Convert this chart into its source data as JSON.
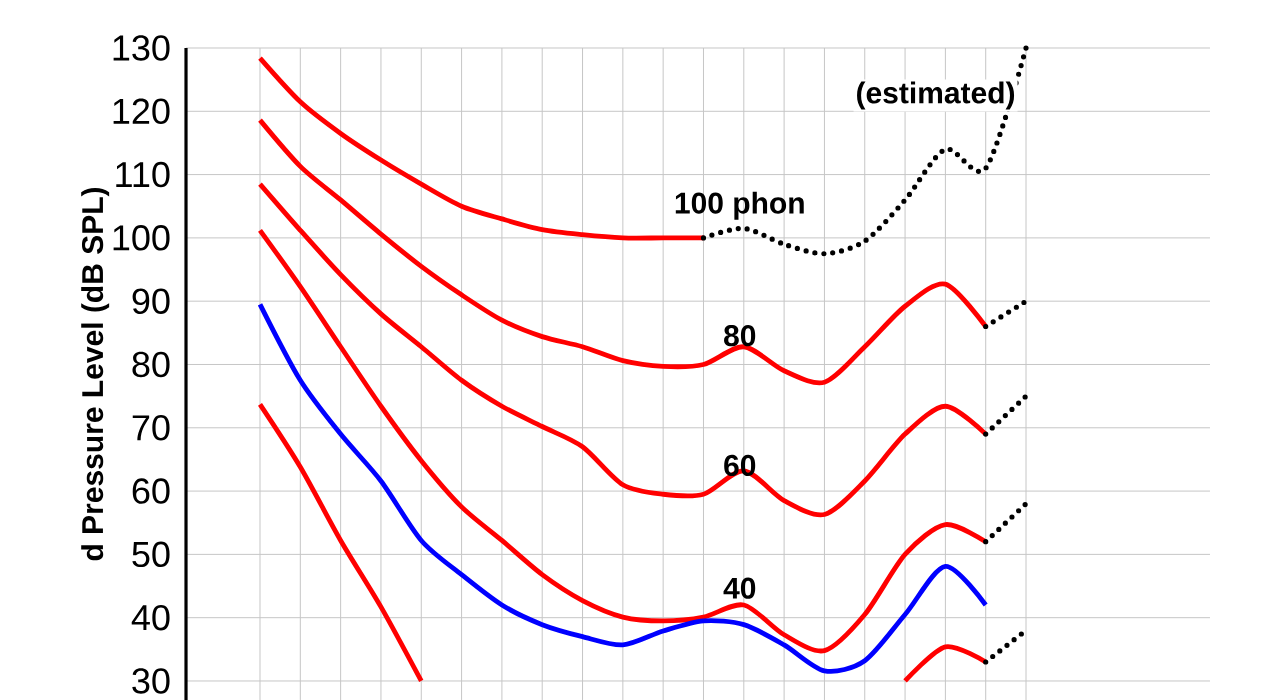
{
  "chart_data": {
    "type": "line",
    "ylabel": "d Pressure Level (dB SPL)",
    "categories": [
      null,
      null,
      null,
      null,
      null,
      null,
      null,
      null,
      null,
      null,
      null,
      null,
      null,
      null,
      null,
      null,
      null,
      null,
      null,
      null
    ],
    "ylim": [
      27,
      130
    ],
    "yticks": [
      30,
      40,
      50,
      60,
      70,
      80,
      90,
      100,
      110,
      120,
      130
    ],
    "grid": true,
    "tick_labels": "y",
    "marker": "none",
    "annotations": [
      "(estimated)"
    ],
    "series": [
      {
        "name": "100 phon",
        "color": "#ff0000",
        "line_style": "solid",
        "values": [
          128.4,
          121.5,
          116.5,
          112.3,
          108.5,
          105,
          103,
          101.3,
          100.5,
          100,
          100,
          100,
          null,
          null,
          null,
          null,
          null,
          null,
          null,
          null
        ]
      },
      {
        "color": "#000000",
        "line_style": "dotted",
        "values": [
          null,
          null,
          null,
          null,
          null,
          null,
          null,
          null,
          null,
          null,
          null,
          100,
          101.5,
          99,
          97.5,
          99.5,
          106,
          114,
          111,
          130
        ]
      },
      {
        "name": "80",
        "color": "#ff0000",
        "line_style": "solid",
        "values": [
          118.6,
          111.3,
          106,
          100.6,
          95.5,
          91,
          87,
          84.4,
          82.8,
          80.6,
          79.7,
          80,
          82.8,
          79,
          77.2,
          82.8,
          89.2,
          92.7,
          86,
          null
        ]
      },
      {
        "color": "#000000",
        "line_style": "dotted",
        "values": [
          null,
          null,
          null,
          null,
          null,
          null,
          null,
          null,
          null,
          null,
          null,
          null,
          null,
          null,
          null,
          null,
          null,
          null,
          86,
          90
        ]
      },
      {
        "name": "60",
        "color": "#ff0000",
        "line_style": "solid",
        "values": [
          108.5,
          101.2,
          94.2,
          88,
          82.8,
          77.5,
          73.4,
          70.2,
          67,
          61,
          59.5,
          59.5,
          63.2,
          58.5,
          56.3,
          61.6,
          69,
          73.4,
          69,
          null
        ]
      },
      {
        "color": "#000000",
        "line_style": "dotted",
        "values": [
          null,
          null,
          null,
          null,
          null,
          null,
          null,
          null,
          null,
          null,
          null,
          null,
          null,
          null,
          null,
          null,
          null,
          null,
          69,
          75
        ]
      },
      {
        "name": "40",
        "color": "#ff0000",
        "line_style": "solid",
        "values": [
          101.2,
          92.3,
          82.8,
          73.4,
          64.8,
          57.5,
          52.2,
          46.8,
          42.7,
          40.1,
          39.5,
          40.1,
          42,
          37.3,
          34.8,
          40.5,
          50,
          54.7,
          52,
          null
        ]
      },
      {
        "color": "#000000",
        "line_style": "dotted",
        "values": [
          null,
          null,
          null,
          null,
          null,
          null,
          null,
          null,
          null,
          null,
          null,
          null,
          null,
          null,
          null,
          null,
          null,
          null,
          52,
          58
        ]
      },
      {
        "color": "#ff0000",
        "line_style": "solid",
        "values": [
          73.7,
          63.8,
          52.2,
          41.7,
          30,
          null,
          null,
          null,
          null,
          null,
          null,
          null,
          null,
          null,
          null,
          null,
          30,
          35.4,
          33,
          null
        ]
      },
      {
        "color": "#000000",
        "line_style": "dotted",
        "values": [
          null,
          null,
          null,
          null,
          null,
          null,
          null,
          null,
          null,
          null,
          null,
          null,
          null,
          null,
          null,
          null,
          null,
          null,
          33,
          38
        ]
      },
      {
        "color": "#0000ff",
        "line_style": "solid",
        "values": [
          89.5,
          77.5,
          69,
          61.6,
          52.2,
          46.8,
          42,
          38.9,
          37,
          35.7,
          37.9,
          39.5,
          38.9,
          35.7,
          31.6,
          33.2,
          40.5,
          48.1,
          42,
          null
        ]
      }
    ]
  }
}
